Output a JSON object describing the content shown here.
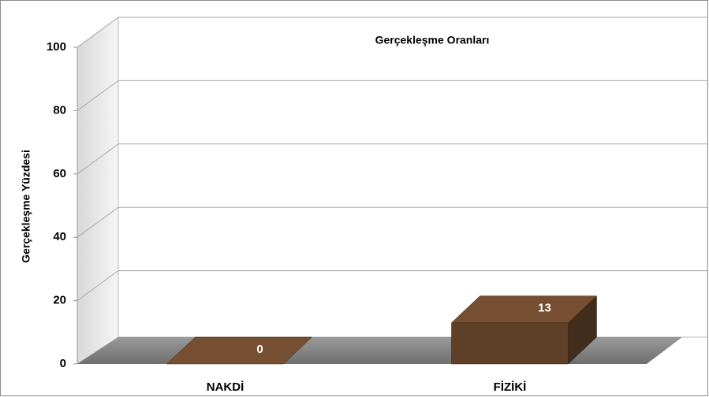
{
  "chart_data": {
    "type": "bar",
    "title": "Gerçekleşme Oranları",
    "ylabel": "Gerçekleşme Yüzdesi",
    "categories": [
      "NAKDİ",
      "FİZİKİ"
    ],
    "values": [
      0,
      13
    ],
    "color": "#5e3f28",
    "ylim": [
      0,
      100
    ],
    "yticks": [
      0,
      20,
      40,
      60,
      80,
      100
    ],
    "grid": true
  }
}
